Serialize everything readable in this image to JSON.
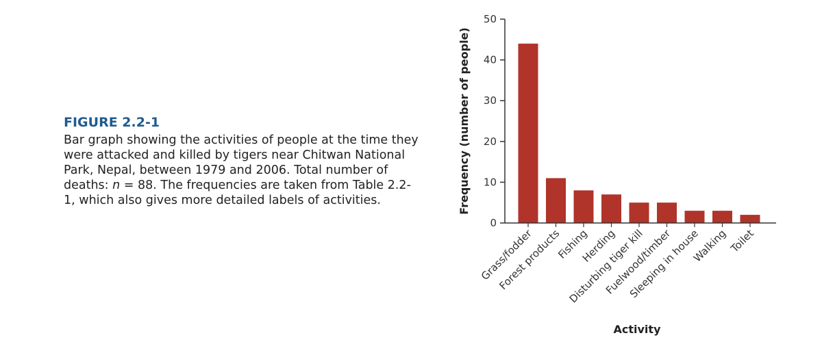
{
  "caption": {
    "label": "FIGURE 2.2-1",
    "text_part1": "Bar graph showing the activities of people at the time they were attacked and killed by tigers near Chitwan National Park, Nepal, between 1979 and 2006. Total number of deaths: ",
    "n_symbol": "n",
    "text_part2": " = 88. The frequencies are taken from Table 2.2-1, which also gives more detailed labels of activities."
  },
  "chart_data": {
    "type": "bar",
    "categories": [
      "Grass/fodder",
      "Forest products",
      "Fishing",
      "Herding",
      "Disturbing tiger kill",
      "Fuelwood/timber",
      "Sleeping in house",
      "Walking",
      "Toilet"
    ],
    "values": [
      44,
      11,
      8,
      7,
      5,
      5,
      3,
      3,
      2
    ],
    "xlabel": "Activity",
    "ylabel": "Frequency (number of people)",
    "ylim": [
      0,
      50
    ],
    "yticks": [
      0,
      10,
      20,
      30,
      40,
      50
    ],
    "bar_color": "#b0342a",
    "grid": false
  }
}
